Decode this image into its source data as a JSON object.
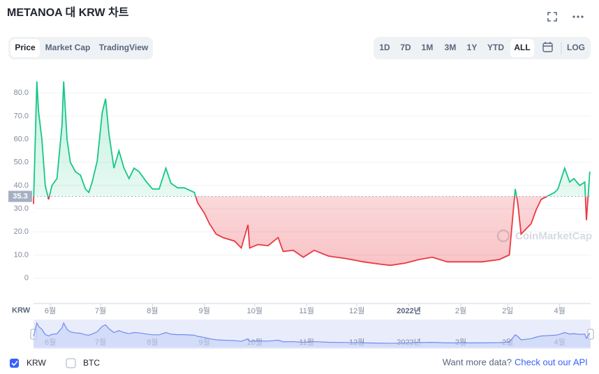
{
  "title": "METANOA 대 KRW 차트",
  "tabs": [
    "Price",
    "Market Cap",
    "TradingView"
  ],
  "ranges": [
    "1D",
    "7D",
    "1M",
    "3M",
    "1Y",
    "YTD",
    "ALL"
  ],
  "log_label": "LOG",
  "chart_data": {
    "type": "line",
    "x_axis_label": "KRW",
    "watermark": "CoinMarketCap",
    "x": [
      0,
      2,
      3,
      5,
      7,
      9,
      11,
      14,
      17,
      18,
      20,
      22,
      25,
      28,
      31,
      33,
      35,
      38,
      41,
      43,
      45,
      48,
      51,
      54,
      57,
      60,
      63,
      67.5,
      71,
      75,
      79,
      82,
      86,
      90,
      96,
      98,
      102,
      105,
      109,
      113,
      120,
      124,
      128,
      129,
      134,
      140,
      146,
      149,
      155,
      161,
      167.5,
      176,
      186,
      197,
      207,
      213,
      222,
      230,
      238,
      247,
      255,
      267.5,
      278,
      284,
      287.5,
      289,
      291,
      293,
      297,
      300,
      303,
      307,
      311,
      313,
      317,
      320,
      322.5,
      326,
      329,
      330,
      332
    ],
    "series": [
      {
        "name": "KRW",
        "values": [
          32,
          85,
          72,
          60,
          40,
          34,
          40,
          43,
          66,
          85,
          60,
          50,
          46,
          44.5,
          38.5,
          37,
          41.5,
          50.5,
          71.5,
          77.5,
          62.5,
          47.5,
          55,
          47.5,
          43,
          47.5,
          46,
          41.5,
          38.5,
          38.5,
          47.5,
          41,
          39,
          39,
          37,
          32.5,
          28,
          23.5,
          19,
          17.5,
          16,
          13,
          23,
          13,
          14.5,
          14,
          17.5,
          11.5,
          12,
          9,
          12,
          9.5,
          8.5,
          7,
          6,
          5.5,
          6.5,
          8,
          9,
          7,
          7,
          7,
          8,
          10,
          38.5,
          32.5,
          19,
          20.5,
          23.5,
          29.5,
          34,
          35.5,
          37,
          38.5,
          47.5,
          41.5,
          43,
          40,
          41.5,
          25,
          46
        ]
      }
    ],
    "baseline": 35.3,
    "color_above": "#16c784",
    "color_below": "#ea3943",
    "xlim": [
      0,
      332.5
    ],
    "xticks": [
      {
        "value": 10,
        "label": "6월"
      },
      {
        "value": 40,
        "label": "7월"
      },
      {
        "value": 71,
        "label": "8월"
      },
      {
        "value": 102,
        "label": "9월"
      },
      {
        "value": 132,
        "label": "10월"
      },
      {
        "value": 163,
        "label": "11월"
      },
      {
        "value": 193,
        "label": "12월"
      },
      {
        "value": 224,
        "label": "2022년"
      },
      {
        "value": 255,
        "label": "2월"
      },
      {
        "value": 283,
        "label": "2일"
      },
      {
        "value": 314,
        "label": "4월"
      }
    ],
    "ylim": [
      -11,
      87
    ],
    "yticks": [
      0,
      {
        "value": 10,
        "label": "10.0"
      },
      {
        "value": 20,
        "label": "20.0"
      },
      {
        "value": 30,
        "label": "30.0"
      },
      {
        "value": 40,
        "label": "40.0"
      },
      {
        "value": 50,
        "label": "50.0"
      },
      {
        "value": 60,
        "label": "60.0"
      },
      {
        "value": 70,
        "label": "70.0"
      },
      {
        "value": 80,
        "label": "80.0"
      }
    ],
    "grid": true
  },
  "currency_options": [
    "BTC"
  ],
  "footer": {
    "prompt": "Want more data?",
    "link": "Check out our API"
  }
}
